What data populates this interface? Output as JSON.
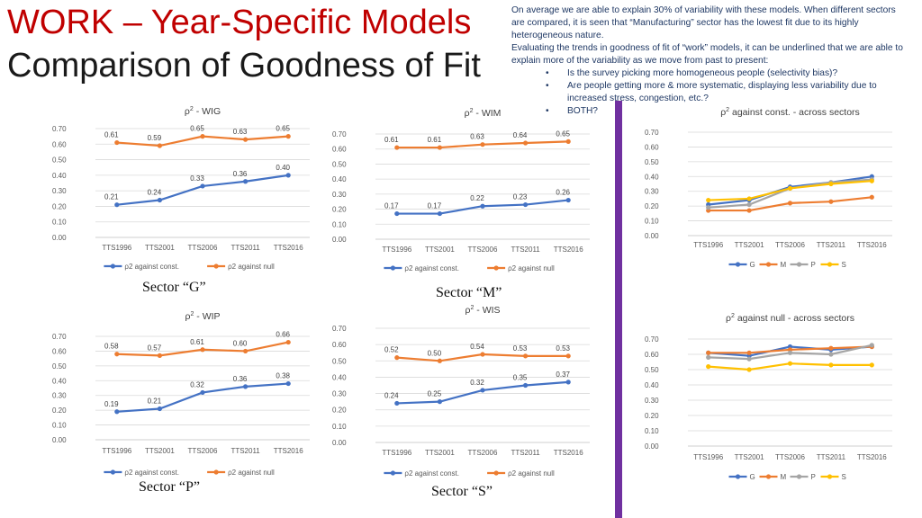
{
  "header": {
    "title_line1": "WORK – Year-Specific Models",
    "title_line2": "Comparison of Goodness of Fit"
  },
  "notes": {
    "paragraph1": "On average we are able to explain 30% of variability with these models. When different sectors are compared, it is seen that “Manufacturing” sector has the lowest fit due to its highly heterogeneous nature.",
    "paragraph2": "Evaluating the trends in goodness of fit of “work” models, it can be underlined that we are able to explain more of the variability as we move from past to present:",
    "bullets": [
      "Is the survey picking more homogeneous people (selectivity bias)?",
      "Are people getting more & more systematic, displaying less variability due to increased stress, congestion, etc.?",
      "BOTH?"
    ]
  },
  "sector_labels": {
    "g": "Sector “G”",
    "m": "Sector “M”",
    "p": "Sector “P”",
    "s": "Sector “S”"
  },
  "colors": {
    "blue": "#4472c4",
    "orange": "#ed7d31",
    "gray": "#a5a5a5",
    "yellow": "#ffc000",
    "title_red": "#c00000",
    "divider_purple": "#7030a0",
    "notes_text": "#1f3864"
  },
  "chart_data": [
    {
      "id": "wig",
      "type": "line",
      "title": "ρ2 - WIG",
      "categories": [
        "TTS1996",
        "TTS2001",
        "TTS2006",
        "TTS2011",
        "TTS2016"
      ],
      "yticks": [
        "0.00",
        "0.10",
        "0.20",
        "0.30",
        "0.40",
        "0.50",
        "0.60",
        "0.70"
      ],
      "ylim": [
        0,
        0.7
      ],
      "grid": true,
      "legend_position": "bottom",
      "data_labels": true,
      "series": [
        {
          "name": "ρ2 against const.",
          "color": "#4472c4",
          "values": [
            0.21,
            0.24,
            0.33,
            0.36,
            0.4
          ],
          "labels": [
            "0.21",
            "0.24",
            "0.33",
            "0.36",
            "0.40"
          ]
        },
        {
          "name": "ρ2 against null",
          "color": "#ed7d31",
          "values": [
            0.61,
            0.59,
            0.65,
            0.63,
            0.65
          ],
          "labels": [
            "0.61",
            "0.59",
            "0.65",
            "0.63",
            "0.65"
          ]
        }
      ]
    },
    {
      "id": "wim",
      "type": "line",
      "title": "ρ2 - WIM",
      "categories": [
        "TTS1996",
        "TTS2001",
        "TTS2006",
        "TTS2011",
        "TTS2016"
      ],
      "yticks": [
        "0.00",
        "0.10",
        "0.20",
        "0.30",
        "0.40",
        "0.50",
        "0.60",
        "0.70"
      ],
      "ylim": [
        0,
        0.7
      ],
      "grid": true,
      "legend_position": "bottom",
      "data_labels": true,
      "series": [
        {
          "name": "ρ2 against const.",
          "color": "#4472c4",
          "values": [
            0.17,
            0.17,
            0.22,
            0.23,
            0.26
          ],
          "labels": [
            "0.17",
            "0.17",
            "0.22",
            "0.23",
            "0.26"
          ]
        },
        {
          "name": "ρ2 against null",
          "color": "#ed7d31",
          "values": [
            0.61,
            0.61,
            0.63,
            0.64,
            0.65
          ],
          "labels": [
            "0.61",
            "0.61",
            "0.63",
            "0.64",
            "0.65"
          ]
        }
      ]
    },
    {
      "id": "const_across",
      "type": "line",
      "title": "ρ2 against const. - across sectors",
      "categories": [
        "TTS1996",
        "TTS2001",
        "TTS2006",
        "TTS2011",
        "TTS2016"
      ],
      "yticks": [
        "0.00",
        "0.10",
        "0.20",
        "0.30",
        "0.40",
        "0.50",
        "0.60",
        "0.70"
      ],
      "ylim": [
        0,
        0.7
      ],
      "grid": true,
      "legend_position": "top",
      "data_labels": false,
      "series": [
        {
          "name": "G",
          "color": "#4472c4",
          "values": [
            0.21,
            0.24,
            0.33,
            0.36,
            0.4
          ]
        },
        {
          "name": "M",
          "color": "#ed7d31",
          "values": [
            0.17,
            0.17,
            0.22,
            0.23,
            0.26
          ]
        },
        {
          "name": "P",
          "color": "#a5a5a5",
          "values": [
            0.19,
            0.21,
            0.32,
            0.36,
            0.38
          ]
        },
        {
          "name": "S",
          "color": "#ffc000",
          "values": [
            0.24,
            0.25,
            0.32,
            0.35,
            0.37
          ]
        }
      ]
    },
    {
      "id": "wip",
      "type": "line",
      "title": "ρ2 - WIP",
      "categories": [
        "TTS1996",
        "TTS2001",
        "TTS2006",
        "TTS2011",
        "TTS2016"
      ],
      "yticks": [
        "0.00",
        "0.10",
        "0.20",
        "0.30",
        "0.40",
        "0.50",
        "0.60",
        "0.70"
      ],
      "ylim": [
        0,
        0.7
      ],
      "grid": true,
      "legend_position": "bottom",
      "data_labels": true,
      "series": [
        {
          "name": "ρ2 against const.",
          "color": "#4472c4",
          "values": [
            0.19,
            0.21,
            0.32,
            0.36,
            0.38
          ],
          "labels": [
            "0.19",
            "0.21",
            "0.32",
            "0.36",
            "0.38"
          ]
        },
        {
          "name": "ρ2 against null",
          "color": "#ed7d31",
          "values": [
            0.58,
            0.57,
            0.61,
            0.6,
            0.66
          ],
          "labels": [
            "0.58",
            "0.57",
            "0.61",
            "0.60",
            "0.66"
          ]
        }
      ]
    },
    {
      "id": "wis",
      "type": "line",
      "title": "ρ2 - WIS",
      "categories": [
        "TTS1996",
        "TTS2001",
        "TTS2006",
        "TTS2011",
        "TTS2016"
      ],
      "yticks": [
        "0.00",
        "0.10",
        "0.20",
        "0.30",
        "0.40",
        "0.50",
        "0.60",
        "0.70"
      ],
      "ylim": [
        0,
        0.7
      ],
      "grid": true,
      "legend_position": "bottom",
      "data_labels": true,
      "series": [
        {
          "name": "ρ2 against const.",
          "color": "#4472c4",
          "values": [
            0.24,
            0.25,
            0.32,
            0.35,
            0.37
          ],
          "labels": [
            "0.24",
            "0.25",
            "0.32",
            "0.35",
            "0.37"
          ]
        },
        {
          "name": "ρ2 against null",
          "color": "#ed7d31",
          "values": [
            0.52,
            0.5,
            0.54,
            0.53,
            0.53
          ],
          "labels": [
            "0.52",
            "0.50",
            "0.54",
            "0.53",
            "0.53"
          ]
        }
      ]
    },
    {
      "id": "null_across",
      "type": "line",
      "title": "ρ2 against null - across sectors",
      "categories": [
        "TTS1996",
        "TTS2001",
        "TTS2006",
        "TTS2011",
        "TTS2016"
      ],
      "yticks": [
        "0.00",
        "0.10",
        "0.20",
        "0.30",
        "0.40",
        "0.50",
        "0.60",
        "0.70"
      ],
      "ylim": [
        0,
        0.7
      ],
      "grid": true,
      "legend_position": "bottom",
      "data_labels": false,
      "series": [
        {
          "name": "G",
          "color": "#4472c4",
          "values": [
            0.61,
            0.59,
            0.65,
            0.63,
            0.65
          ]
        },
        {
          "name": "M",
          "color": "#ed7d31",
          "values": [
            0.61,
            0.61,
            0.63,
            0.64,
            0.65
          ]
        },
        {
          "name": "P",
          "color": "#a5a5a5",
          "values": [
            0.58,
            0.57,
            0.61,
            0.6,
            0.66
          ]
        },
        {
          "name": "S",
          "color": "#ffc000",
          "values": [
            0.52,
            0.5,
            0.54,
            0.53,
            0.53
          ]
        }
      ]
    }
  ]
}
